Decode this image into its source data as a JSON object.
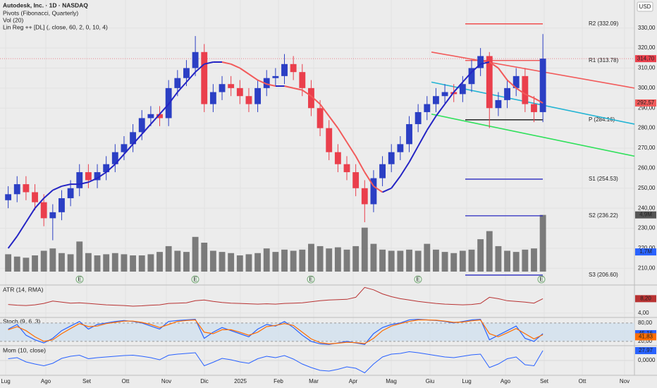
{
  "header": {
    "title": "Autodesk, Inc. · 1D · NASDAQ",
    "indicators": [
      "Pivots (Fibonacci, Quarterly)",
      "Vol (20)",
      "Lin Reg ++ [DL] (, close, 60, 2, 0, 10, 4)"
    ],
    "currency": "USD",
    "earnings": "E"
  },
  "chart_data": {
    "type": "candlestick",
    "x_labels": [
      "Lug",
      "Ago",
      "Set",
      "Ott",
      "Nov",
      "Dic",
      "2025",
      "Feb",
      "Mar",
      "Apr",
      "Mag",
      "Giu",
      "Lug",
      "Ago",
      "Set",
      "Ott",
      "Nov"
    ],
    "ylim": [
      202,
      344
    ],
    "yticks": [
      {
        "value": 210,
        "label": "210,00"
      },
      {
        "value": 220,
        "label": "220,00"
      },
      {
        "value": 230,
        "label": "230,00"
      },
      {
        "value": 240,
        "label": "240,00"
      },
      {
        "value": 250,
        "label": "250,00"
      },
      {
        "value": 260,
        "label": "260,00"
      },
      {
        "value": 270,
        "label": "270,00"
      },
      {
        "value": 280,
        "label": "280,00"
      },
      {
        "value": 290,
        "label": "290,00"
      },
      {
        "value": 300,
        "label": "300,00"
      },
      {
        "value": 310,
        "label": "310,00"
      },
      {
        "value": 320,
        "label": "320,00"
      },
      {
        "value": 330,
        "label": "330,00"
      }
    ],
    "grid": true,
    "price": {
      "up_color": "#2b3fc4",
      "down_color": "#ea3f4c",
      "open": [
        244,
        247,
        252,
        248,
        243,
        235,
        238,
        245,
        250,
        258,
        254,
        258,
        262,
        268,
        272,
        278,
        285,
        287,
        285,
        300,
        305,
        310,
        318,
        292,
        298,
        302,
        300,
        296,
        292,
        300,
        305,
        306,
        312,
        308,
        300,
        290,
        280,
        268,
        262,
        258,
        250,
        242,
        255,
        262,
        268,
        272,
        282,
        288,
        292,
        296,
        298,
        297,
        302,
        310,
        316,
        290,
        294,
        300,
        306,
        292,
        288
      ],
      "high": [
        251,
        256,
        256,
        252,
        247,
        242,
        249,
        254,
        262,
        262,
        262,
        266,
        272,
        276,
        282,
        289,
        291,
        291,
        304,
        309,
        314,
        326,
        322,
        302,
        306,
        306,
        304,
        300,
        304,
        309,
        310,
        317,
        316,
        312,
        304,
        294,
        284,
        272,
        266,
        262,
        254,
        259,
        266,
        272,
        276,
        286,
        292,
        296,
        300,
        302,
        302,
        306,
        314,
        320,
        318,
        298,
        304,
        310,
        310,
        296,
        327
      ],
      "low": [
        240,
        243,
        244,
        239,
        231,
        224,
        234,
        241,
        246,
        250,
        250,
        254,
        258,
        264,
        268,
        274,
        281,
        281,
        281,
        296,
        301,
        306,
        288,
        288,
        294,
        296,
        292,
        288,
        288,
        296,
        301,
        302,
        304,
        296,
        286,
        276,
        264,
        258,
        254,
        246,
        233,
        238,
        251,
        258,
        264,
        268,
        278,
        284,
        288,
        292,
        293,
        293,
        298,
        306,
        280,
        286,
        290,
        296,
        288,
        283,
        283
      ],
      "close": [
        247,
        252,
        248,
        243,
        235,
        238,
        245,
        250,
        258,
        254,
        258,
        262,
        268,
        272,
        278,
        285,
        287,
        285,
        300,
        305,
        310,
        318,
        292,
        298,
        302,
        300,
        296,
        292,
        300,
        305,
        306,
        312,
        308,
        300,
        290,
        280,
        268,
        262,
        258,
        250,
        242,
        255,
        262,
        268,
        272,
        282,
        288,
        292,
        296,
        298,
        297,
        302,
        310,
        316,
        290,
        294,
        300,
        306,
        292,
        288,
        314.7
      ],
      "last_label": "314,70",
      "last_color": "#ea3f4c"
    },
    "average": {
      "up_color": "#2424c4",
      "down_color": "#f25a5a",
      "last_label": "292,57",
      "values": [
        220,
        226,
        233,
        240,
        245,
        249,
        251,
        252,
        252,
        253,
        255,
        258,
        262,
        267,
        272,
        277,
        282,
        287,
        292,
        298,
        303,
        308,
        312,
        313,
        313,
        312,
        310,
        307,
        304,
        302,
        301,
        301,
        300,
        299,
        296,
        292,
        286,
        280,
        273,
        266,
        258,
        251,
        248,
        250,
        256,
        263,
        271,
        279,
        286,
        292,
        298,
        303,
        308,
        312,
        313,
        310,
        304,
        300,
        297,
        295,
        292.57
      ]
    },
    "channel": {
      "upper": {
        "values": [
          318,
          300
        ],
        "color": "#f25a5a"
      },
      "middle": {
        "values": [
          303,
          282
        ],
        "color": "#22b4d4"
      },
      "lower": {
        "values": [
          287,
          266
        ],
        "color": "#2ee05a"
      }
    },
    "pivots": [
      {
        "value": 332.09,
        "label": "R2 (332.09)",
        "color": "#f04040"
      },
      {
        "value": 313.78,
        "label": "R1 (313.78)",
        "color": "#f04040"
      },
      {
        "value": 284.16,
        "label": "P (284.16)",
        "color": "#111111"
      },
      {
        "value": 254.53,
        "label": "S1 (254.53)",
        "color": "#2a2ac0"
      },
      {
        "value": 236.22,
        "label": "S2 (236.22)",
        "color": "#2a2ac0"
      },
      {
        "value": 206.6,
        "label": "S3 (206.60)",
        "color": "#2a2ac0"
      }
    ],
    "volume": {
      "color": "#555555",
      "ylim": [
        0,
        5
      ],
      "last_label": "4,9M",
      "values": [
        1.5,
        1.3,
        1.2,
        1.4,
        1.8,
        2.0,
        1.6,
        1.5,
        2.6,
        1.6,
        1.4,
        1.5,
        1.6,
        1.5,
        1.4,
        1.4,
        1.5,
        1.7,
        2.2,
        1.8,
        1.7,
        3.0,
        2.5,
        1.8,
        1.7,
        1.6,
        1.4,
        1.5,
        1.6,
        2.0,
        1.7,
        1.9,
        1.8,
        1.9,
        2.4,
        2.2,
        2.0,
        2.1,
        1.9,
        2.2,
        3.8,
        2.4,
        1.9,
        1.8,
        1.8,
        1.9,
        1.8,
        2.4,
        1.9,
        1.7,
        1.6,
        1.8,
        1.9,
        2.8,
        3.5,
        2.2,
        1.8,
        1.7,
        1.9,
        2.0,
        4.9
      ],
      "average": {
        "value": 1.7,
        "label": "1,7M",
        "color": "#2962ff"
      }
    },
    "atr": {
      "title": "ATR (14, RMA)",
      "color": "#b83232",
      "ylim": [
        2.7,
        12.2
      ],
      "yticks": [
        {
          "value": 4,
          "label": "4,00"
        }
      ],
      "last_label": "8,20",
      "values": [
        6.5,
        6.3,
        6.2,
        6.4,
        6.8,
        7.5,
        7.2,
        6.9,
        7.0,
        6.8,
        6.6,
        6.4,
        6.3,
        6.2,
        6.0,
        6.1,
        6.3,
        6.4,
        6.8,
        6.9,
        7.0,
        7.6,
        7.8,
        7.4,
        7.1,
        6.9,
        6.8,
        6.7,
        6.6,
        6.7,
        6.6,
        6.8,
        6.9,
        7.0,
        7.3,
        7.6,
        7.8,
        7.9,
        8.0,
        8.6,
        11.5,
        10.8,
        9.6,
        8.8,
        8.2,
        7.8,
        7.4,
        7.1,
        6.8,
        6.6,
        6.5,
        6.4,
        6.5,
        6.8,
        8.6,
        8.2,
        7.6,
        7.4,
        7.2,
        6.9,
        8.2
      ]
    },
    "stoch": {
      "title": "Stoch (9, 6, 3)",
      "ylim": [
        6,
        98
      ],
      "yticks": [
        {
          "value": 80,
          "label": "80,00"
        },
        {
          "value": 20,
          "label": "20,00"
        }
      ],
      "band_color": "#cfe0f0",
      "k": {
        "color": "#2962ff",
        "last_label": "45,16",
        "values": [
          60,
          75,
          40,
          25,
          15,
          30,
          55,
          70,
          85,
          60,
          75,
          80,
          85,
          88,
          85,
          80,
          70,
          60,
          85,
          88,
          90,
          92,
          30,
          50,
          65,
          55,
          45,
          35,
          60,
          75,
          70,
          85,
          65,
          40,
          20,
          12,
          10,
          15,
          20,
          15,
          10,
          45,
          65,
          75,
          80,
          90,
          92,
          90,
          88,
          85,
          80,
          85,
          90,
          92,
          25,
          40,
          55,
          70,
          30,
          20,
          45.16
        ]
      },
      "d": {
        "color": "#ff6d00",
        "last_label": "41,83",
        "values": [
          58,
          68,
          55,
          35,
          20,
          25,
          45,
          62,
          78,
          68,
          70,
          78,
          82,
          86,
          86,
          82,
          75,
          65,
          75,
          85,
          88,
          90,
          50,
          45,
          58,
          58,
          50,
          40,
          50,
          68,
          72,
          78,
          72,
          50,
          28,
          16,
          12,
          14,
          17,
          16,
          13,
          30,
          55,
          70,
          78,
          85,
          90,
          90,
          89,
          86,
          82,
          83,
          87,
          90,
          45,
          35,
          48,
          62,
          45,
          28,
          41.83
        ]
      }
    },
    "mom": {
      "title": "Mom (10, close)",
      "color": "#2962ff",
      "ylim": [
        -42,
        42
      ],
      "yticks": [
        {
          "value": 0,
          "label": "0,0000"
        }
      ],
      "last_label": "27,97",
      "values": [
        5,
        8,
        -4,
        -10,
        -15,
        -8,
        6,
        12,
        15,
        5,
        8,
        10,
        12,
        14,
        15,
        12,
        8,
        2,
        15,
        18,
        20,
        22,
        -15,
        -5,
        6,
        2,
        -4,
        -8,
        5,
        12,
        8,
        14,
        4,
        -10,
        -20,
        -28,
        -30,
        -25,
        -18,
        -22,
        -35,
        -10,
        10,
        18,
        20,
        25,
        22,
        18,
        14,
        10,
        8,
        12,
        16,
        18,
        -20,
        -10,
        5,
        10,
        -12,
        -15,
        27.97
      ]
    }
  }
}
